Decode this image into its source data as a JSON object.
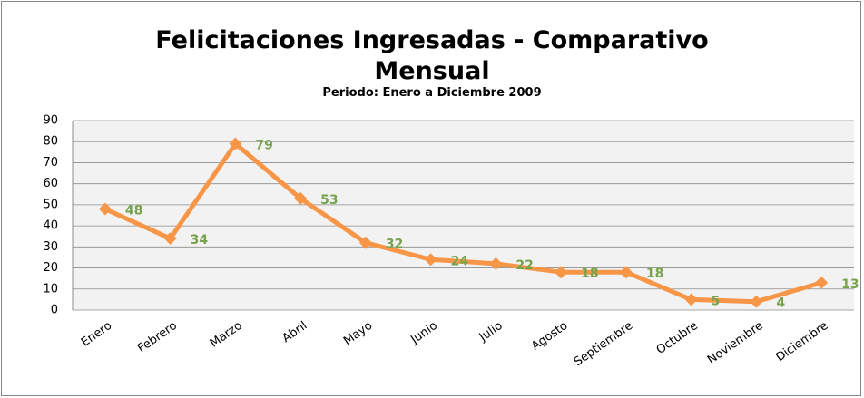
{
  "chart_data": {
    "type": "line",
    "title": "Felicitaciones Ingresadas - Comparativo Mensual",
    "subtitle": "Periodo: Enero a Diciembre 2009",
    "categories": [
      "Enero",
      "Febrero",
      "Marzo",
      "Abril",
      "Mayo",
      "Junio",
      "Julio",
      "Agosto",
      "Septiembre",
      "Octubre",
      "Noviembre",
      "Diciembre"
    ],
    "values": [
      48,
      34,
      79,
      53,
      32,
      24,
      22,
      18,
      18,
      5,
      4,
      13
    ],
    "color": "#f79646",
    "label_color": "#77a34f",
    "ylim": [
      0,
      90
    ],
    "yticks": [
      0,
      10,
      20,
      30,
      40,
      50,
      60,
      70,
      80,
      90
    ],
    "grid": true
  }
}
